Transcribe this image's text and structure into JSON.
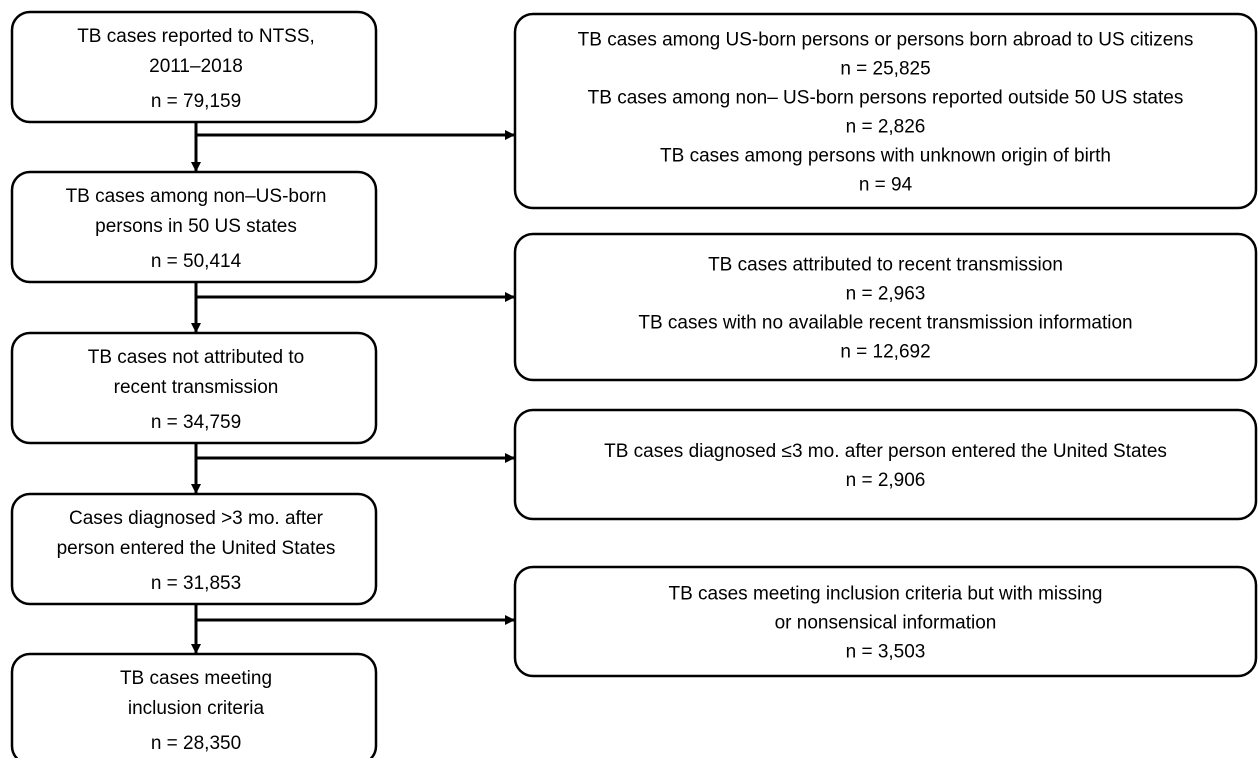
{
  "left_boxes": [
    {
      "lines": [
        "TB cases reported to NTSS,",
        "2011–2018"
      ],
      "count": "n = 79,159"
    },
    {
      "lines": [
        "TB cases among non–US-born",
        "persons in 50 US states"
      ],
      "count": "n = 50,414"
    },
    {
      "lines": [
        "TB cases not attributed to",
        "recent transmission"
      ],
      "count": "n = 34,759"
    },
    {
      "lines": [
        "Cases diagnosed >3 mo. after",
        "person entered the United States"
      ],
      "count": "n = 31,853"
    },
    {
      "lines": [
        "TB cases meeting",
        "inclusion criteria"
      ],
      "count": "n = 28,350"
    }
  ],
  "right_boxes": [
    {
      "lines": [
        "TB cases among US-born persons or persons born abroad to US citizens",
        "n = 25,825",
        "TB cases among non– US-born persons reported outside 50 US states",
        "n = 2,826",
        "TB cases among persons with unknown origin of birth",
        "n = 94"
      ]
    },
    {
      "lines": [
        "TB cases attributed to recent transmission",
        "n = 2,963",
        "TB cases with no available recent transmission information",
        "n = 12,692"
      ]
    },
    {
      "lines": [
        "TB cases diagnosed ≤3 mo. after person entered the United States",
        "n = 2,906"
      ]
    },
    {
      "lines": [
        "TB cases meeting inclusion criteria but with missing",
        "or nonsensical information",
        "n = 3,503"
      ]
    }
  ]
}
